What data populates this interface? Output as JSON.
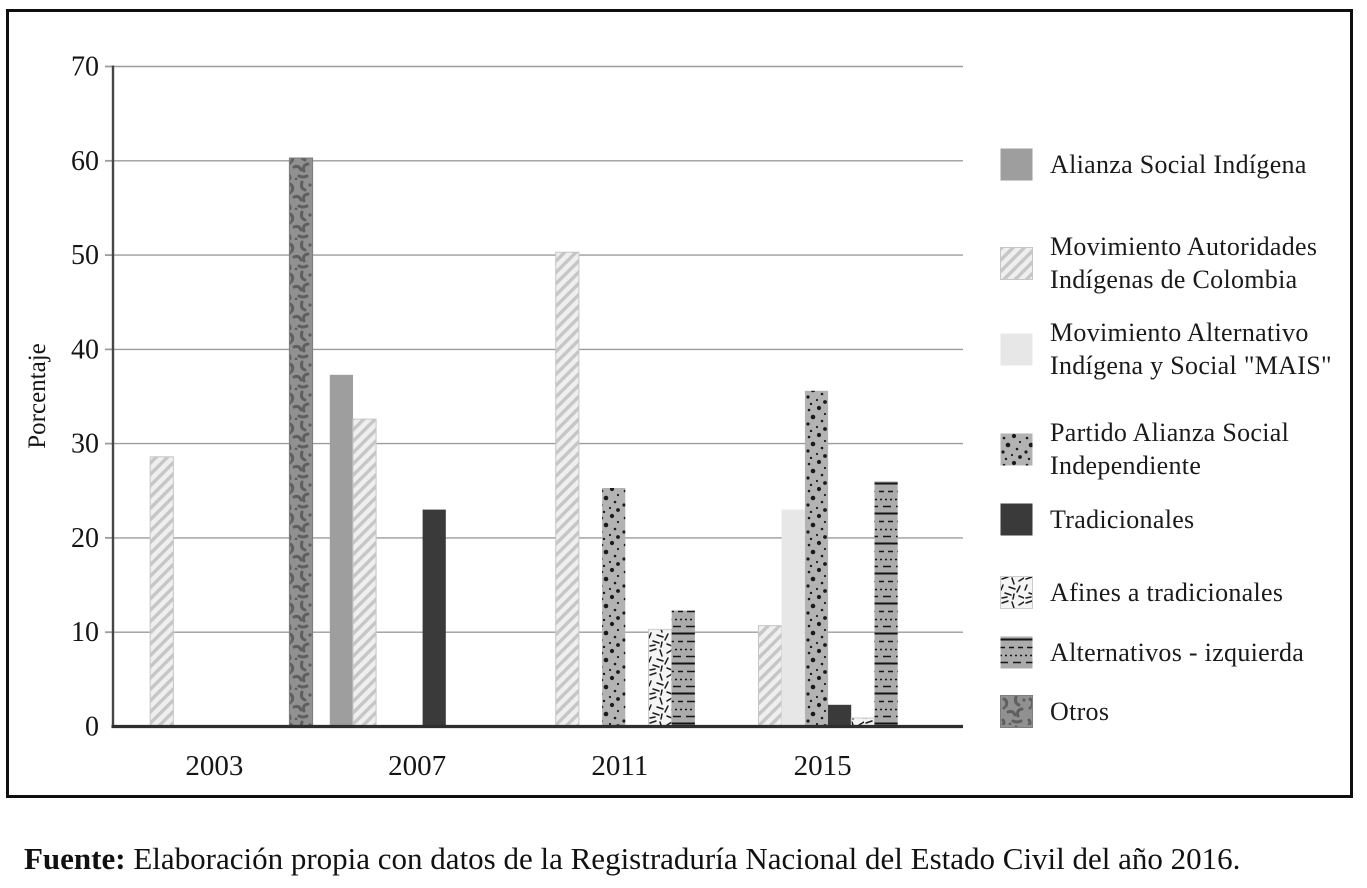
{
  "figure": {
    "caption": {
      "bold": "Fuente:",
      "rest": " Elaboración propia con datos de la Registraduría Nacional del Estado Civil del año 2016."
    }
  },
  "chart_data": {
    "type": "bar",
    "title": "",
    "xlabel": "",
    "ylabel": "Porcentaje",
    "ylim": [
      0,
      70
    ],
    "yticks": [
      0,
      10,
      20,
      30,
      40,
      50,
      60,
      70
    ],
    "grid": true,
    "legend_position": "right",
    "categories": [
      "2003",
      "2007",
      "2011",
      "2015"
    ],
    "series": [
      {
        "name": "Alianza Social Indígena",
        "legend_lines": [
          "Alianza Social Indígena"
        ],
        "pattern": "solid-gray",
        "values": [
          null,
          37.3,
          null,
          null
        ]
      },
      {
        "name": "Movimiento Autoridades Indígenas de Colombia",
        "legend_lines": [
          "Movimiento Autoridades",
          "Indígenas de Colombia"
        ],
        "pattern": "diagonal-hatch",
        "values": [
          28.6,
          32.6,
          50.3,
          10.7
        ]
      },
      {
        "name": "Movimiento Alternativo Indígena y Social \"MAIS\"",
        "legend_lines": [
          "Movimiento Alternativo",
          "Indígena y Social \"MAIS\""
        ],
        "pattern": "solid-light",
        "values": [
          null,
          null,
          null,
          23.0
        ]
      },
      {
        "name": "Partido Alianza Social Independiente",
        "legend_lines": [
          "Partido Alianza Social",
          "Independiente"
        ],
        "pattern": "speckled-dots",
        "values": [
          null,
          null,
          25.3,
          35.6
        ]
      },
      {
        "name": "Tradicionales",
        "legend_lines": [
          "Tradicionales"
        ],
        "pattern": "solid-dark",
        "values": [
          null,
          23.0,
          null,
          2.3
        ]
      },
      {
        "name": "Afines a tradicionales",
        "legend_lines": [
          "Afines a tradicionales"
        ],
        "pattern": "scattered-dashes",
        "values": [
          null,
          null,
          10.3,
          0.9
        ]
      },
      {
        "name": "Alternativos - izquierda",
        "legend_lines": [
          "Alternativos - izquierda"
        ],
        "pattern": "horizontal-lines",
        "values": [
          null,
          null,
          12.3,
          26.0
        ]
      },
      {
        "name": "Otros",
        "legend_lines": [
          "Otros"
        ],
        "pattern": "mottled",
        "values": [
          60.3,
          null,
          null,
          null
        ]
      }
    ],
    "colors": {
      "solid_gray": "#9e9e9e",
      "solid_light": "#e7e7e7",
      "solid_dark": "#3a3a3a",
      "hatch_bg": "#efefef",
      "hatch_stripe": "#c6c6c6",
      "speckle_bg": "#b3b3b3",
      "speckle_dot": "#1a1a1a",
      "dash_bg": "#f4f4f4",
      "dash_stroke": "#1c1c1c",
      "lines_bg": "#ababab",
      "lines_stroke": "#141414",
      "mottle_bg": "#919191",
      "mottle_blob": "#5f5f5f",
      "gridline": "#9c9c9c",
      "axis": "#2e2e2e",
      "text": "#151515"
    }
  }
}
